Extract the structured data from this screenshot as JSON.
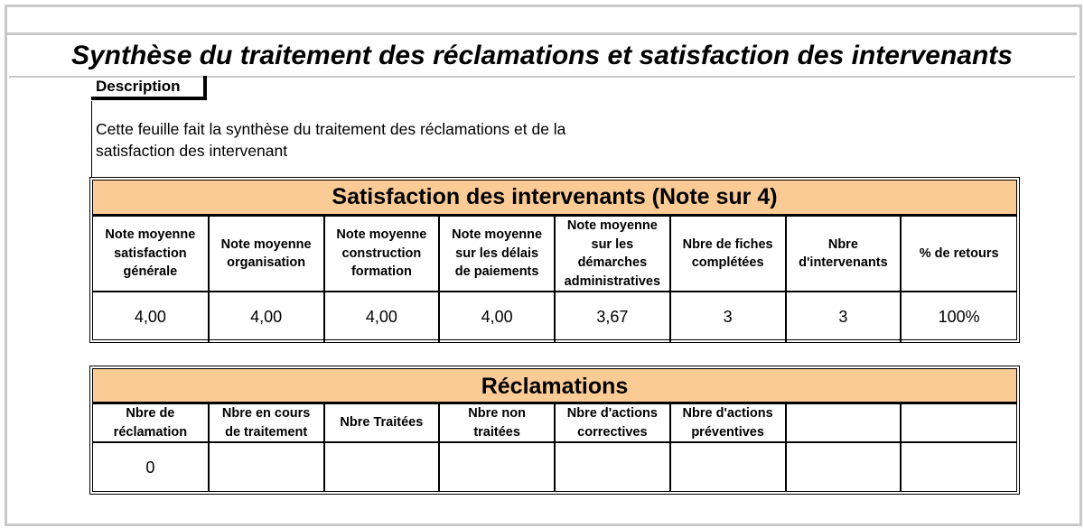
{
  "title": "Synthèse du traitement des réclamations et satisfaction des intervenants",
  "description": {
    "label": "Description",
    "line1": "Cette feuille fait la synthèse du traitement des réclamations et de la",
    "line2": "satisfaction des intervenant"
  },
  "satisfaction": {
    "title": "Satisfaction des intervenants (Note sur 4)",
    "headers": [
      [
        "Note moyenne",
        "satisfaction",
        "générale"
      ],
      [
        "Note moyenne",
        "organisation"
      ],
      [
        "Note moyenne",
        "construction",
        "formation"
      ],
      [
        "Note moyenne",
        "sur les délais",
        "de paiements"
      ],
      [
        "Note moyenne",
        "sur les",
        "démarches",
        "administratives"
      ],
      [
        "Nbre de fiches",
        "complétées"
      ],
      [
        "Nbre",
        "d'intervenants"
      ],
      [
        "% de retours"
      ]
    ],
    "values": [
      "4,00",
      "4,00",
      "4,00",
      "4,00",
      "3,67",
      "3",
      "3",
      "100%"
    ]
  },
  "reclamations": {
    "title": "Réclamations",
    "headers": [
      [
        "Nbre de",
        "réclamation"
      ],
      [
        "Nbre en cours",
        "de traitement"
      ],
      [
        "Nbre Traitées"
      ],
      [
        "Nbre non",
        "traitées"
      ],
      [
        "Nbre d'actions",
        "correctives"
      ],
      [
        "Nbre d'actions",
        "préventives"
      ],
      [],
      []
    ],
    "values": [
      "0",
      "",
      "",
      "",
      "",
      "",
      "",
      ""
    ]
  }
}
